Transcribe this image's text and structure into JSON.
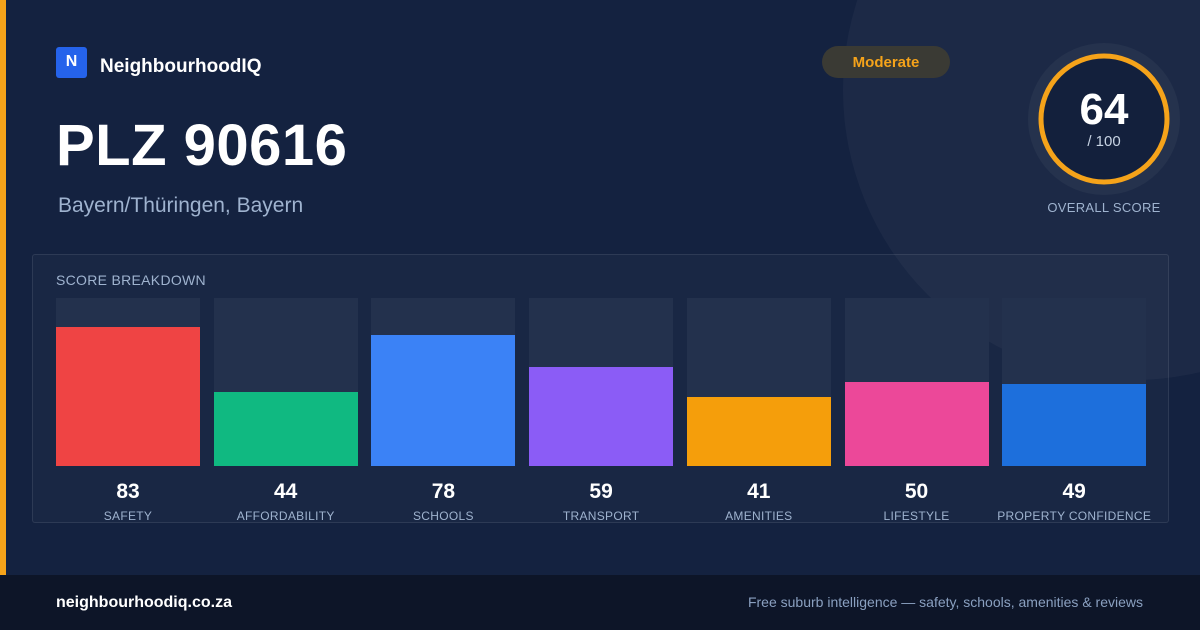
{
  "brand": {
    "logo_letter": "N",
    "name": "NeighbourhoodIQ"
  },
  "location": {
    "title": "PLZ 90616",
    "subtitle": "Bayern/Thüringen, Bayern"
  },
  "rating_badge": {
    "label": "Moderate",
    "color": "#f5a31a"
  },
  "overall": {
    "score": "64",
    "denominator": "/ 100",
    "label": "OVERALL SCORE",
    "fraction": 0.64,
    "ring_color": "#f5a31a"
  },
  "breakdown": {
    "title": "SCORE BREAKDOWN",
    "max": 100,
    "items": [
      {
        "label": "SAFETY",
        "value": "83",
        "score": 83,
        "color": "#ef4444"
      },
      {
        "label": "AFFORDABILITY",
        "value": "44",
        "score": 44,
        "color": "#10b981"
      },
      {
        "label": "SCHOOLS",
        "value": "78",
        "score": 78,
        "color": "#3b82f6"
      },
      {
        "label": "TRANSPORT",
        "value": "59",
        "score": 59,
        "color": "#8b5cf6"
      },
      {
        "label": "AMENITIES",
        "value": "41",
        "score": 41,
        "color": "#f59e0b"
      },
      {
        "label": "LIFESTYLE",
        "value": "50",
        "score": 50,
        "color": "#ec4899"
      },
      {
        "label": "PROPERTY CONFIDENCE",
        "value": "49",
        "score": 49,
        "color": "#1d6fdc"
      }
    ]
  },
  "footer": {
    "domain": "neighbourhoodiq.co.za",
    "tagline": "Free suburb intelligence — safety, schools, amenities & reviews"
  }
}
